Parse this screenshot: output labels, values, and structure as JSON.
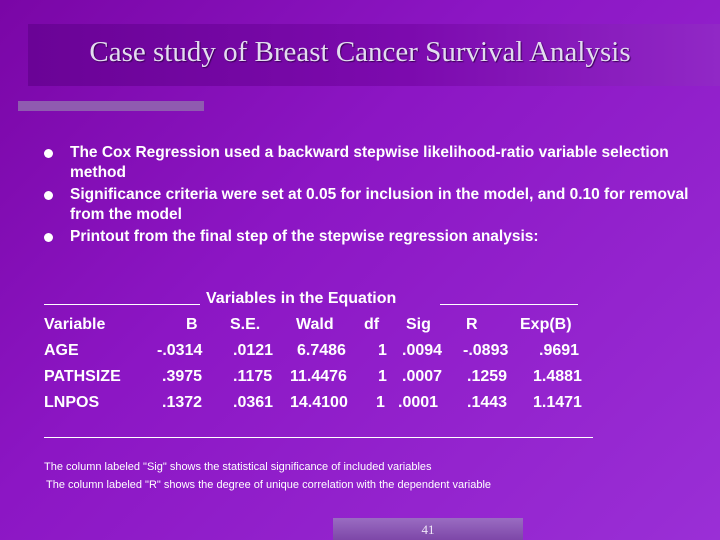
{
  "title": "Case study of Breast Cancer Survival Analysis",
  "bullets": [
    "The Cox Regression used a backward stepwise likelihood-ratio variable selection method",
    "Significance criteria were set at 0.05 for inclusion in the model, and 0.10 for removal from the model",
    "Printout from the final step of the stepwise regression analysis:"
  ],
  "table": {
    "heading": "Variables in the Equation",
    "columns": [
      "Variable",
      "B",
      "S.E.",
      "Wald",
      "df",
      "Sig",
      "R",
      "Exp(B)"
    ],
    "rows": [
      [
        "AGE",
        "-.0314",
        ".0121",
        "6.7486",
        "1",
        ".0094",
        "-.0893",
        ".9691"
      ],
      [
        "PATHSIZE",
        ".3975",
        ".1175",
        "11.4476",
        "1",
        ".0007",
        ".1259",
        "1.4881"
      ],
      [
        "LNPOS",
        ".1372",
        ".0361",
        "14.4100",
        "1",
        ".0001",
        ".1443",
        "1.1471"
      ]
    ]
  },
  "notes": [
    "The column labeled \"Sig\" shows the statistical significance of included variables",
    "The column labeled \"R\" shows the degree of unique correlation with the dependent variable"
  ],
  "page_number": "41",
  "colors": {
    "background": "#8c16c4",
    "text": "#ffffff",
    "accent_bar": "#8f5bb0"
  }
}
